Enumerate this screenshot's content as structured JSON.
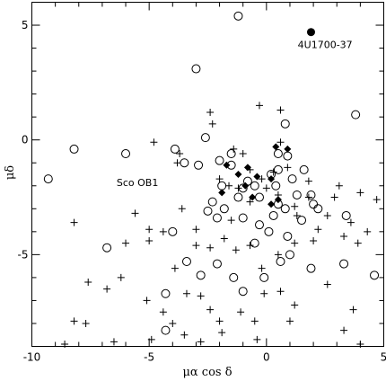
{
  "chart_data": {
    "type": "scatter",
    "xlabel": "μα  cos δ",
    "ylabel": "μδ",
    "xlim": [
      -10,
      5
    ],
    "ylim": [
      -9,
      6
    ],
    "x_ticks": [
      -10,
      -5,
      0,
      5
    ],
    "y_ticks": [
      -5,
      0,
      5
    ],
    "grid": false,
    "annotations": [
      {
        "text": "4U1700-37",
        "x": 2.5,
        "y": 4.0
      },
      {
        "text": "Sco OB1",
        "x": -5.5,
        "y": -2.0
      }
    ],
    "series": [
      {
        "marker": "target",
        "color": "#000000",
        "points": [
          [
            1.9,
            4.7
          ]
        ]
      },
      {
        "marker": "circle",
        "color": "#000000",
        "points": [
          [
            -1.2,
            5.4
          ],
          [
            -3.0,
            3.1
          ],
          [
            -9.3,
            -1.7
          ],
          [
            -8.2,
            -0.4
          ],
          [
            -6.0,
            -0.6
          ],
          [
            -6.8,
            -4.7
          ],
          [
            -4.0,
            -4.0
          ],
          [
            -3.9,
            -0.4
          ],
          [
            -3.5,
            -1.0
          ],
          [
            -2.9,
            -1.1
          ],
          [
            -2.6,
            0.1
          ],
          [
            -2.0,
            -0.9
          ],
          [
            -1.5,
            -0.6
          ],
          [
            -1.9,
            -2.0
          ],
          [
            -1.2,
            -2.5
          ],
          [
            -2.3,
            -2.7
          ],
          [
            -2.1,
            -3.4
          ],
          [
            -2.5,
            -3.1
          ],
          [
            -1.8,
            -3.0
          ],
          [
            -1.0,
            -3.4
          ],
          [
            -0.5,
            -2.0
          ],
          [
            -0.3,
            -2.5
          ],
          [
            0.2,
            -1.5
          ],
          [
            0.5,
            -1.3
          ],
          [
            0.5,
            -0.6
          ],
          [
            0.9,
            -0.7
          ],
          [
            1.1,
            -1.7
          ],
          [
            1.3,
            -2.4
          ],
          [
            0.8,
            -3.0
          ],
          [
            0.3,
            -3.3
          ],
          [
            -0.3,
            -3.7
          ],
          [
            0.1,
            -4.0
          ],
          [
            -0.5,
            -4.5
          ],
          [
            0.9,
            -4.2
          ],
          [
            1.5,
            -3.5
          ],
          [
            2.2,
            -3.0
          ],
          [
            0.8,
            0.7
          ],
          [
            -1.0,
            -2.1
          ],
          [
            -0.8,
            -1.8
          ],
          [
            0.4,
            -2.0
          ],
          [
            1.9,
            -2.4
          ],
          [
            2.0,
            -2.8
          ],
          [
            1.6,
            -1.3
          ],
          [
            3.4,
            -3.3
          ],
          [
            3.8,
            1.1
          ],
          [
            -1.5,
            -1.1
          ],
          [
            1.0,
            -5.0
          ],
          [
            -0.1,
            -6.0
          ],
          [
            -1.0,
            -6.6
          ],
          [
            0.6,
            -5.3
          ],
          [
            -1.4,
            -6.0
          ],
          [
            -2.1,
            -5.4
          ],
          [
            -2.8,
            -5.9
          ],
          [
            -4.3,
            -6.7
          ],
          [
            -3.4,
            -5.3
          ],
          [
            1.9,
            -5.6
          ],
          [
            3.3,
            -5.4
          ],
          [
            4.6,
            -5.9
          ],
          [
            -4.3,
            -8.3
          ],
          [
            0.5,
            -2.8
          ]
        ]
      },
      {
        "marker": "plus",
        "color": "#000000",
        "points": [
          [
            -3.7,
            -0.6
          ],
          [
            -2.4,
            1.2
          ],
          [
            -1.4,
            -0.4
          ],
          [
            -1.6,
            -2.0
          ],
          [
            -1.0,
            -0.6
          ],
          [
            -0.7,
            -1.3
          ],
          [
            -0.2,
            -1.7
          ],
          [
            0.3,
            -1.4
          ],
          [
            0.6,
            -0.1
          ],
          [
            -0.3,
            1.5
          ],
          [
            0.6,
            1.3
          ],
          [
            -2.3,
            0.7
          ],
          [
            -4.8,
            -0.1
          ],
          [
            -3.8,
            -1.0
          ],
          [
            -2.0,
            -1.7
          ],
          [
            -1.2,
            -2.1
          ],
          [
            -0.7,
            -2.7
          ],
          [
            0.0,
            -2.1
          ],
          [
            0.5,
            -2.4
          ],
          [
            1.2,
            -2.9
          ],
          [
            1.8,
            -2.5
          ],
          [
            2.2,
            -3.9
          ],
          [
            2.6,
            -3.3
          ],
          [
            3.1,
            -2.0
          ],
          [
            4.0,
            -2.3
          ],
          [
            4.7,
            -2.6
          ],
          [
            3.6,
            -3.6
          ],
          [
            3.3,
            -4.2
          ],
          [
            4.3,
            -4.0
          ],
          [
            2.0,
            -4.4
          ],
          [
            1.2,
            -4.5
          ],
          [
            0.5,
            -5.0
          ],
          [
            -0.2,
            -5.6
          ],
          [
            -0.7,
            -4.6
          ],
          [
            -1.3,
            -4.8
          ],
          [
            -1.8,
            -4.3
          ],
          [
            -2.4,
            -4.7
          ],
          [
            -3.0,
            -4.6
          ],
          [
            -4.4,
            -4.0
          ],
          [
            -5.0,
            -3.9
          ],
          [
            -5.0,
            -4.4
          ],
          [
            -5.6,
            -3.2
          ],
          [
            -6.0,
            -4.5
          ],
          [
            -8.2,
            -3.6
          ],
          [
            -6.2,
            -6.0
          ],
          [
            -6.8,
            -6.5
          ],
          [
            -7.6,
            -6.2
          ],
          [
            -8.2,
            -7.9
          ],
          [
            -7.7,
            -8.0
          ],
          [
            -3.9,
            -5.6
          ],
          [
            -3.4,
            -6.7
          ],
          [
            -2.8,
            -6.8
          ],
          [
            -2.4,
            -7.4
          ],
          [
            -2.0,
            -7.9
          ],
          [
            -1.1,
            -7.5
          ],
          [
            -0.5,
            -7.9
          ],
          [
            -0.1,
            -6.7
          ],
          [
            0.6,
            -6.6
          ],
          [
            1.2,
            -7.2
          ],
          [
            -4.4,
            -7.5
          ],
          [
            -4.0,
            -8.0
          ],
          [
            -3.5,
            -8.5
          ],
          [
            -2.8,
            -8.8
          ],
          [
            -1.9,
            -8.4
          ],
          [
            -5.1,
            -7.0
          ],
          [
            -8.6,
            -8.9
          ],
          [
            -6.5,
            -8.8
          ],
          [
            -4.9,
            -8.7
          ],
          [
            -3.0,
            -3.9
          ],
          [
            -3.6,
            -3.0
          ],
          [
            -1.5,
            -3.5
          ],
          [
            1.3,
            -3.3
          ],
          [
            2.9,
            -2.5
          ],
          [
            1.8,
            -1.8
          ],
          [
            0.9,
            -1.2
          ],
          [
            3.9,
            -4.5
          ],
          [
            2.6,
            -6.3
          ],
          [
            3.7,
            -7.4
          ],
          [
            1.0,
            -7.9
          ],
          [
            -0.4,
            -8.7
          ],
          [
            3.3,
            -8.3
          ],
          [
            4.0,
            -8.9
          ]
        ]
      },
      {
        "marker": "diamond",
        "color": "#000000",
        "points": [
          [
            -1.7,
            -1.1
          ],
          [
            -1.2,
            -1.5
          ],
          [
            -0.8,
            -1.2
          ],
          [
            -0.4,
            -1.6
          ],
          [
            0.2,
            -1.7
          ],
          [
            -0.9,
            -2.0
          ],
          [
            -0.6,
            -2.5
          ],
          [
            0.2,
            -2.8
          ],
          [
            -1.9,
            -2.3
          ],
          [
            0.4,
            -0.3
          ],
          [
            0.9,
            -0.4
          ],
          [
            0.5,
            -2.6
          ]
        ]
      }
    ]
  }
}
